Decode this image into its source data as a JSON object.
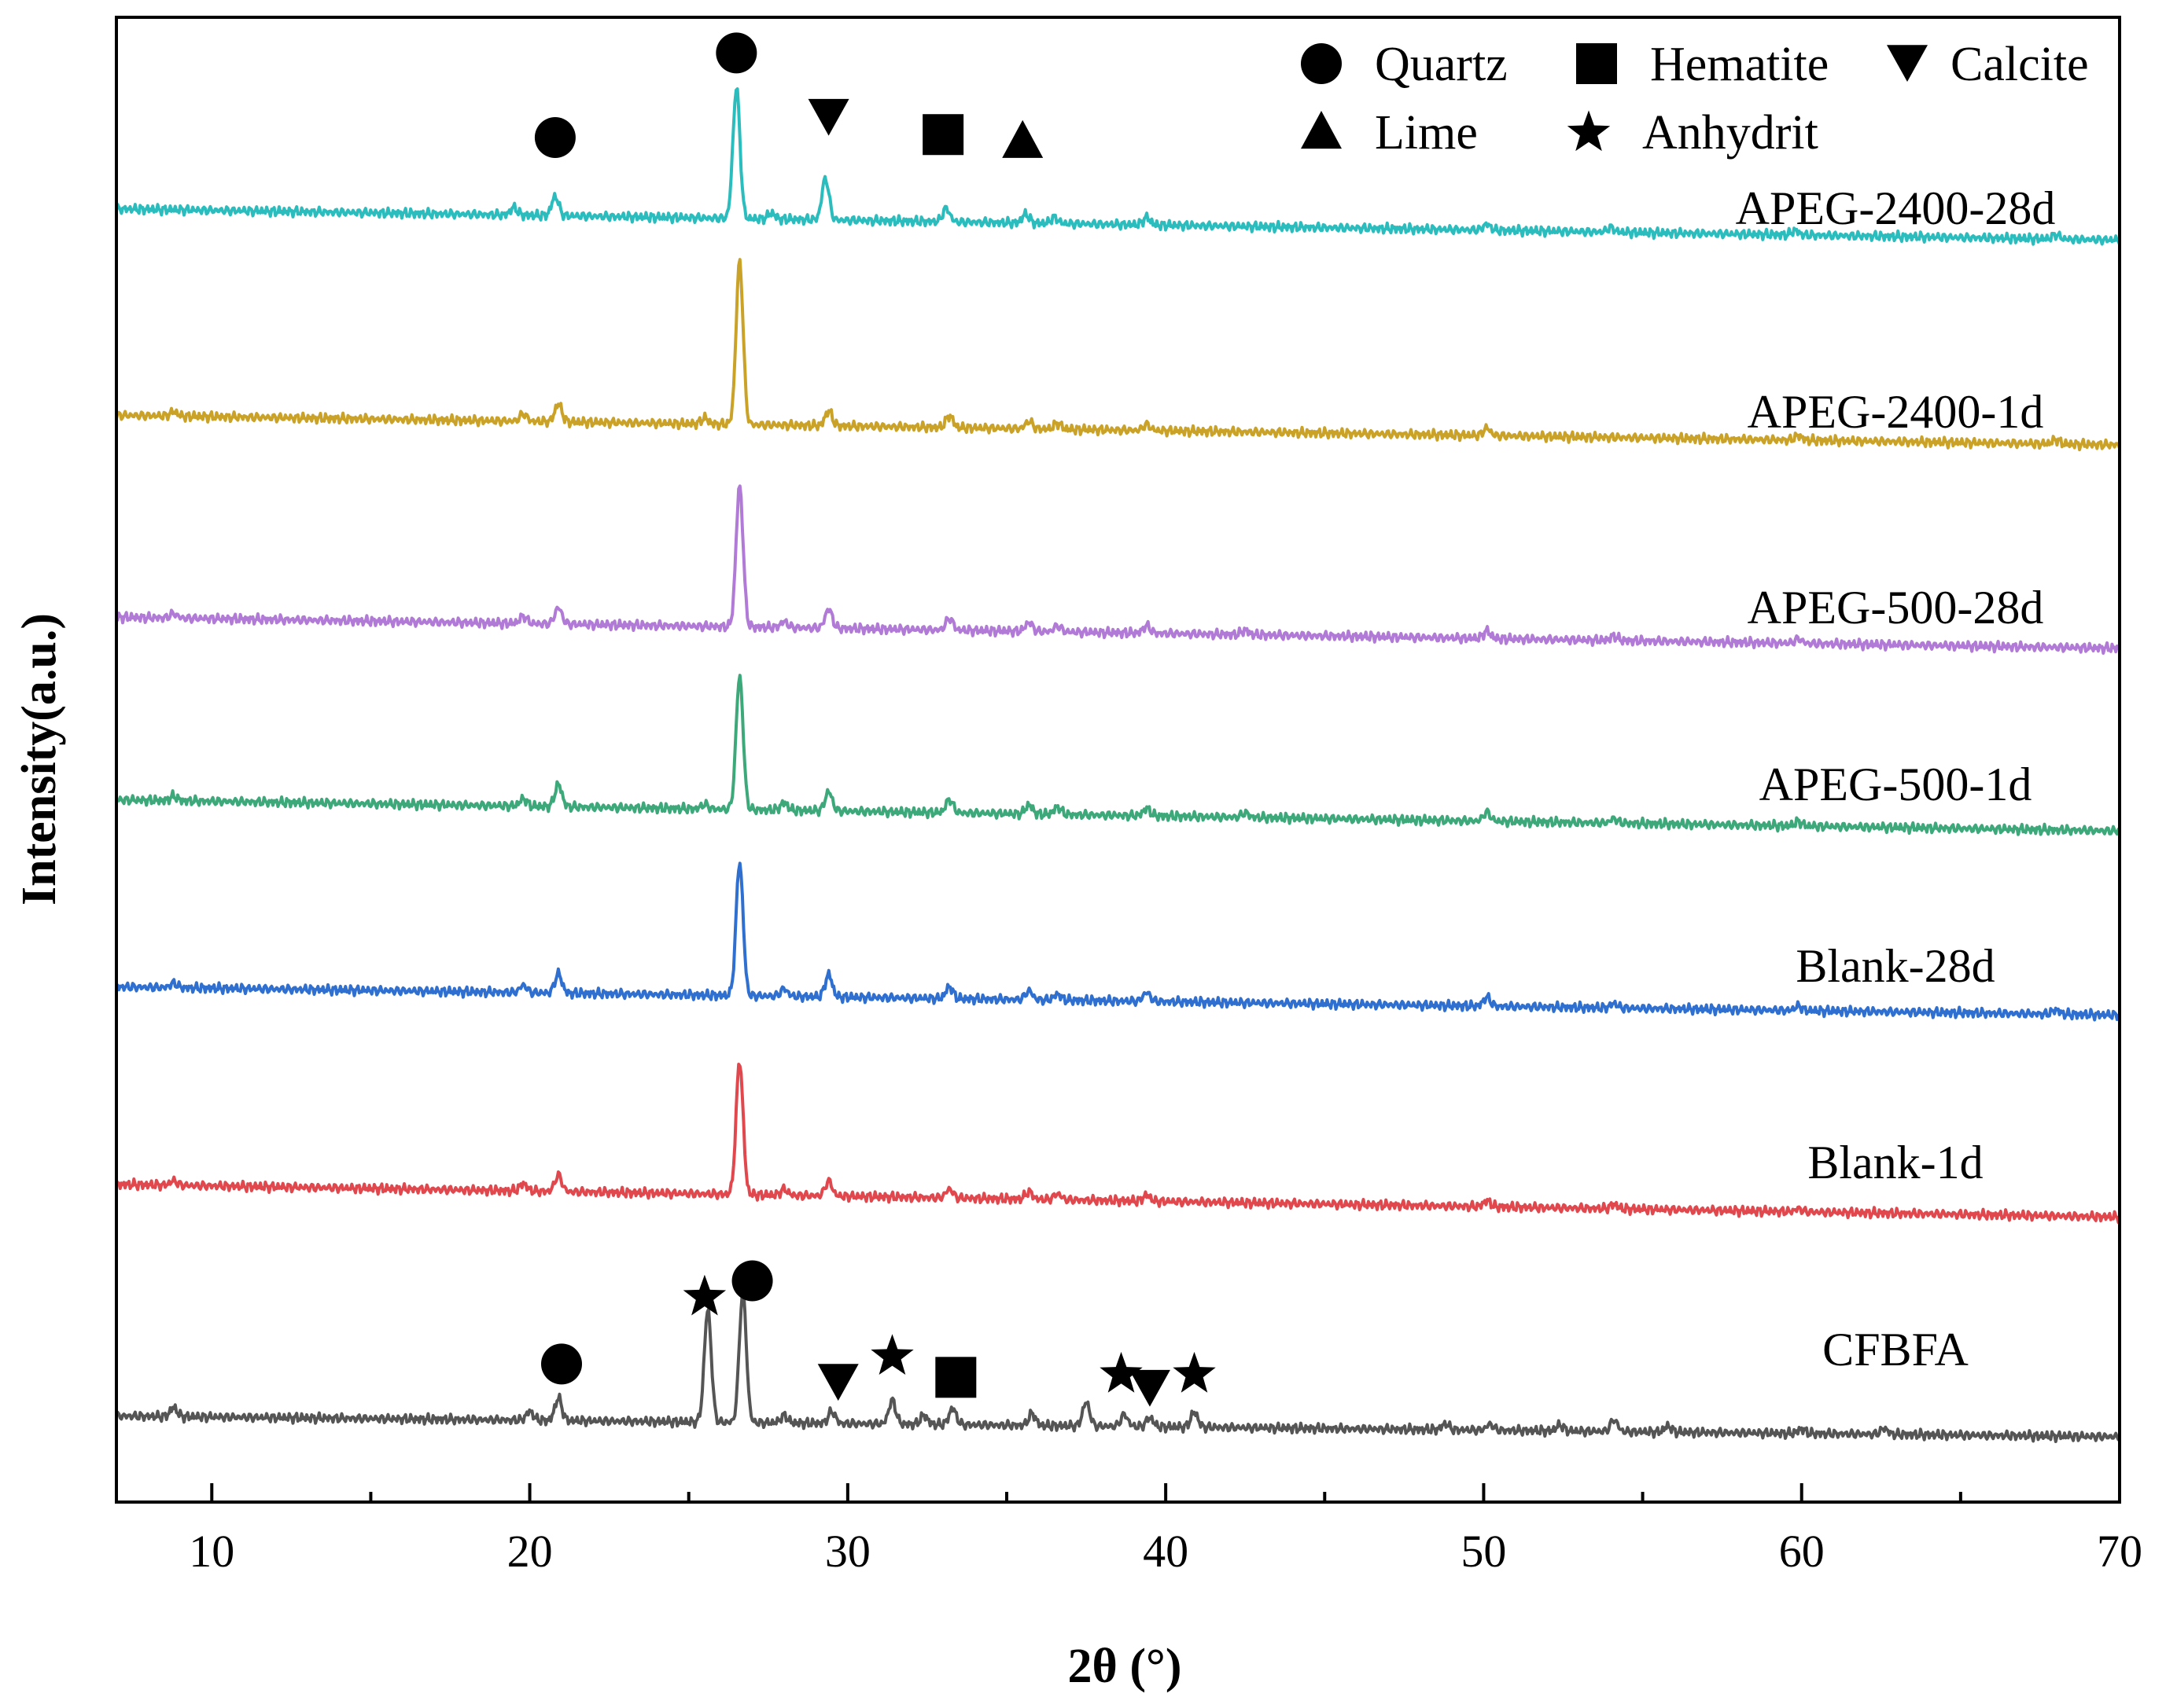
{
  "chart_data": {
    "type": "line",
    "title": "",
    "xlabel": "2θ (°)",
    "ylabel": "Intensity(a.u.)",
    "xlim": [
      7,
      70
    ],
    "ylim": [
      0,
      100
    ],
    "x_ticks": [
      10,
      20,
      30,
      40,
      50,
      60,
      70
    ],
    "y_ticks": [],
    "grid": false,
    "legend": {
      "position": "top-right",
      "entries": [
        {
          "marker": "circle",
          "label": "Quartz"
        },
        {
          "marker": "square",
          "label": "Hematite"
        },
        {
          "marker": "triangle-down",
          "label": "Calcite"
        },
        {
          "marker": "triangle-up",
          "label": "Lime"
        },
        {
          "marker": "star",
          "label": "Anhydrit"
        }
      ]
    },
    "series": [
      {
        "name": "CFBFA",
        "color": "#555555",
        "baseline_start": 5.8,
        "baseline_end": 4.4,
        "peaks": [
          [
            8.8,
            0.6
          ],
          [
            20.0,
            0.6
          ],
          [
            20.9,
            1.5
          ],
          [
            25.6,
            7.6
          ],
          [
            26.7,
            8.8
          ],
          [
            28.0,
            0.5
          ],
          [
            29.5,
            0.8
          ],
          [
            31.4,
            1.6
          ],
          [
            32.4,
            0.6
          ],
          [
            33.3,
            1.1
          ],
          [
            35.8,
            0.8
          ],
          [
            37.5,
            1.6
          ],
          [
            38.7,
            0.8
          ],
          [
            39.5,
            0.6
          ],
          [
            40.9,
            1.0
          ],
          [
            48.8,
            0.4
          ],
          [
            50.2,
            0.4
          ],
          [
            52.4,
            0.4
          ],
          [
            54.1,
            0.8
          ],
          [
            55.8,
            0.4
          ],
          [
            60.0,
            0.3
          ],
          [
            62.6,
            0.4
          ]
        ],
        "markers": [
          [
            21.0,
            9.3,
            "circle"
          ],
          [
            25.5,
            13.8,
            "star"
          ],
          [
            27.0,
            14.9,
            "circle"
          ],
          [
            29.7,
            8.2,
            "triangle-down"
          ],
          [
            31.4,
            9.8,
            "star"
          ],
          [
            33.4,
            8.4,
            "square"
          ],
          [
            38.6,
            8.6,
            "star"
          ],
          [
            39.5,
            7.8,
            "triangle-down"
          ],
          [
            40.9,
            8.6,
            "star"
          ]
        ]
      },
      {
        "name": "Blank-1d",
        "color": "#e0484e",
        "baseline_start": 21.4,
        "baseline_end": 19.2,
        "peaks": [
          [
            8.8,
            0.3
          ],
          [
            19.8,
            0.5
          ],
          [
            20.9,
            1.1
          ],
          [
            26.6,
            9.0
          ],
          [
            28.0,
            0.4
          ],
          [
            29.4,
            1.0
          ],
          [
            33.2,
            0.6
          ],
          [
            35.7,
            0.5
          ],
          [
            36.6,
            0.4
          ],
          [
            39.4,
            0.4
          ],
          [
            50.1,
            0.4
          ],
          [
            54.1,
            0.3
          ],
          [
            59.9,
            0.2
          ]
        ],
        "markers": []
      },
      {
        "name": "Blank-28d",
        "color": "#2f6fd0",
        "baseline_start": 34.7,
        "baseline_end": 32.8,
        "peaks": [
          [
            8.8,
            0.3
          ],
          [
            19.8,
            0.5
          ],
          [
            20.9,
            1.3
          ],
          [
            26.6,
            9.0
          ],
          [
            28.0,
            0.5
          ],
          [
            29.4,
            1.5
          ],
          [
            33.2,
            0.8
          ],
          [
            35.7,
            0.6
          ],
          [
            36.6,
            0.4
          ],
          [
            39.4,
            0.6
          ],
          [
            50.1,
            0.6
          ],
          [
            54.1,
            0.3
          ],
          [
            59.9,
            0.3
          ],
          [
            68.0,
            0.3
          ]
        ],
        "markers": []
      },
      {
        "name": "APEG-500-1d",
        "color": "#3da87a",
        "baseline_start": 47.3,
        "baseline_end": 45.2,
        "peaks": [
          [
            8.8,
            0.3
          ],
          [
            19.8,
            0.5
          ],
          [
            20.9,
            1.5
          ],
          [
            25.5,
            0.3
          ],
          [
            26.6,
            9.0
          ],
          [
            28.0,
            0.5
          ],
          [
            29.4,
            1.3
          ],
          [
            33.2,
            0.9
          ],
          [
            35.7,
            0.6
          ],
          [
            36.6,
            0.5
          ],
          [
            39.4,
            0.5
          ],
          [
            42.5,
            0.3
          ],
          [
            50.1,
            0.6
          ],
          [
            54.1,
            0.3
          ],
          [
            59.9,
            0.3
          ]
        ],
        "markers": []
      },
      {
        "name": "APEG-500-28d",
        "color": "#b07ad6",
        "baseline_start": 59.6,
        "baseline_end": 57.5,
        "peaks": [
          [
            8.8,
            0.3
          ],
          [
            19.8,
            0.5
          ],
          [
            20.9,
            1.1
          ],
          [
            26.6,
            9.5
          ],
          [
            28.0,
            0.4
          ],
          [
            29.4,
            1.3
          ],
          [
            33.2,
            0.8
          ],
          [
            35.7,
            0.6
          ],
          [
            36.6,
            0.4
          ],
          [
            39.4,
            0.5
          ],
          [
            42.5,
            0.3
          ],
          [
            50.1,
            0.5
          ],
          [
            54.1,
            0.3
          ],
          [
            59.9,
            0.3
          ]
        ],
        "markers": []
      },
      {
        "name": "APEG-2400-1d",
        "color": "#c9a227",
        "baseline_start": 73.2,
        "baseline_end": 71.2,
        "peaks": [
          [
            8.8,
            0.3
          ],
          [
            19.8,
            0.5
          ],
          [
            20.9,
            1.2
          ],
          [
            25.5,
            0.4
          ],
          [
            26.6,
            11.0
          ],
          [
            29.4,
            1.0
          ],
          [
            33.2,
            0.8
          ],
          [
            35.7,
            0.5
          ],
          [
            36.6,
            0.4
          ],
          [
            39.4,
            0.4
          ],
          [
            50.1,
            0.5
          ],
          [
            59.9,
            0.3
          ],
          [
            68.0,
            0.3
          ]
        ],
        "markers": []
      },
      {
        "name": "APEG-2400-28d",
        "color": "#2bbdbd",
        "baseline_start": 87.1,
        "baseline_end": 85.0,
        "peaks": [
          [
            19.5,
            0.5
          ],
          [
            20.8,
            1.3
          ],
          [
            26.5,
            8.8
          ],
          [
            27.6,
            0.4
          ],
          [
            29.3,
            2.8
          ],
          [
            33.1,
            0.9
          ],
          [
            35.6,
            0.6
          ],
          [
            36.5,
            0.4
          ],
          [
            39.4,
            0.5
          ],
          [
            50.1,
            0.4
          ],
          [
            54.0,
            0.3
          ],
          [
            59.8,
            0.3
          ],
          [
            68.0,
            0.3
          ]
        ],
        "markers": [
          [
            20.8,
            91.9,
            "circle"
          ],
          [
            26.5,
            97.6,
            "circle"
          ],
          [
            29.4,
            93.4,
            "triangle-down"
          ],
          [
            33.0,
            92.1,
            "square"
          ],
          [
            35.5,
            91.7,
            "triangle-up"
          ]
        ]
      }
    ]
  }
}
